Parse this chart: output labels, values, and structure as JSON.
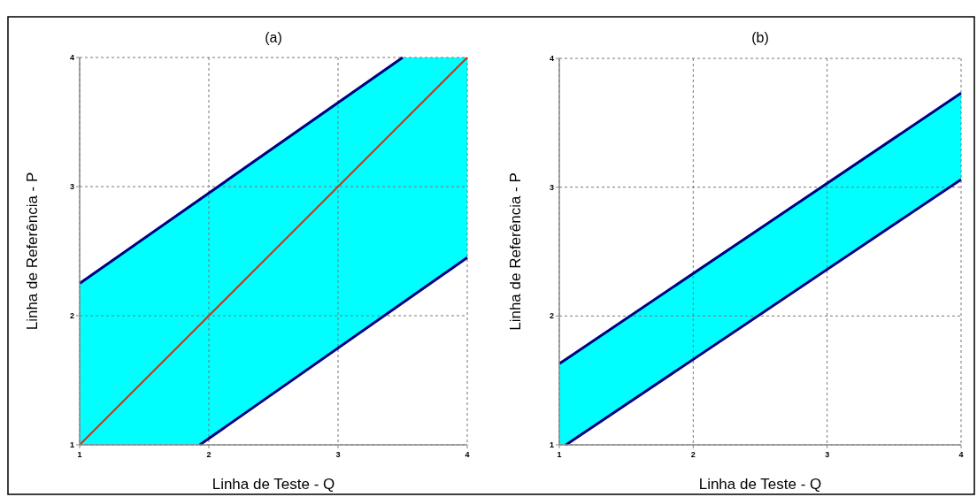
{
  "chart_data": [
    {
      "type": "line",
      "title": "(a)",
      "xlabel": "Linha de Teste - Q",
      "ylabel": "Linha de Referência - P",
      "xlim": [
        1,
        4
      ],
      "ylim": [
        1,
        4
      ],
      "xticks": [
        1,
        2,
        3,
        4
      ],
      "yticks": [
        1,
        2,
        3,
        4
      ],
      "grid": true,
      "line_style": "solid",
      "series": [
        {
          "color": "#000080",
          "x": [
            1,
            3.5
          ],
          "values": [
            2.25,
            4
          ]
        },
        {
          "color": "#000080",
          "x": [
            1.93,
            4
          ],
          "values": [
            1,
            2.45
          ]
        },
        {
          "color": "#cc3311",
          "x": [
            1,
            1.93,
            3.5,
            4
          ],
          "values": [
            1,
            1.93,
            3.5,
            4
          ],
          "lower": [
            1,
            1,
            2.1,
            2.45
          ],
          "upper": [
            2.25,
            2.9,
            4,
            4
          ]
        }
      ]
    },
    {
      "type": "line",
      "title": "(b)",
      "xlabel": "Linha de Teste - Q",
      "ylabel": "Linha de Referência - P",
      "xlim": [
        1,
        4
      ],
      "ylim": [
        1,
        4
      ],
      "xticks": [
        1,
        2,
        3,
        4
      ],
      "yticks": [
        1,
        2,
        3,
        4
      ],
      "grid": true,
      "line_style": "solid",
      "series": [
        {
          "color": "#000080",
          "x": [
            1,
            1.05,
            4
          ],
          "values": [
            1.63,
            1.665,
            3.73
          ],
          "lower": [
            1,
            1,
            3.06
          ],
          "upper": [
            1.63,
            1.665,
            3.73
          ]
        },
        {
          "color": "#000080",
          "x": [
            1.05,
            4
          ],
          "values": [
            1,
            3.06
          ]
        }
      ]
    }
  ]
}
